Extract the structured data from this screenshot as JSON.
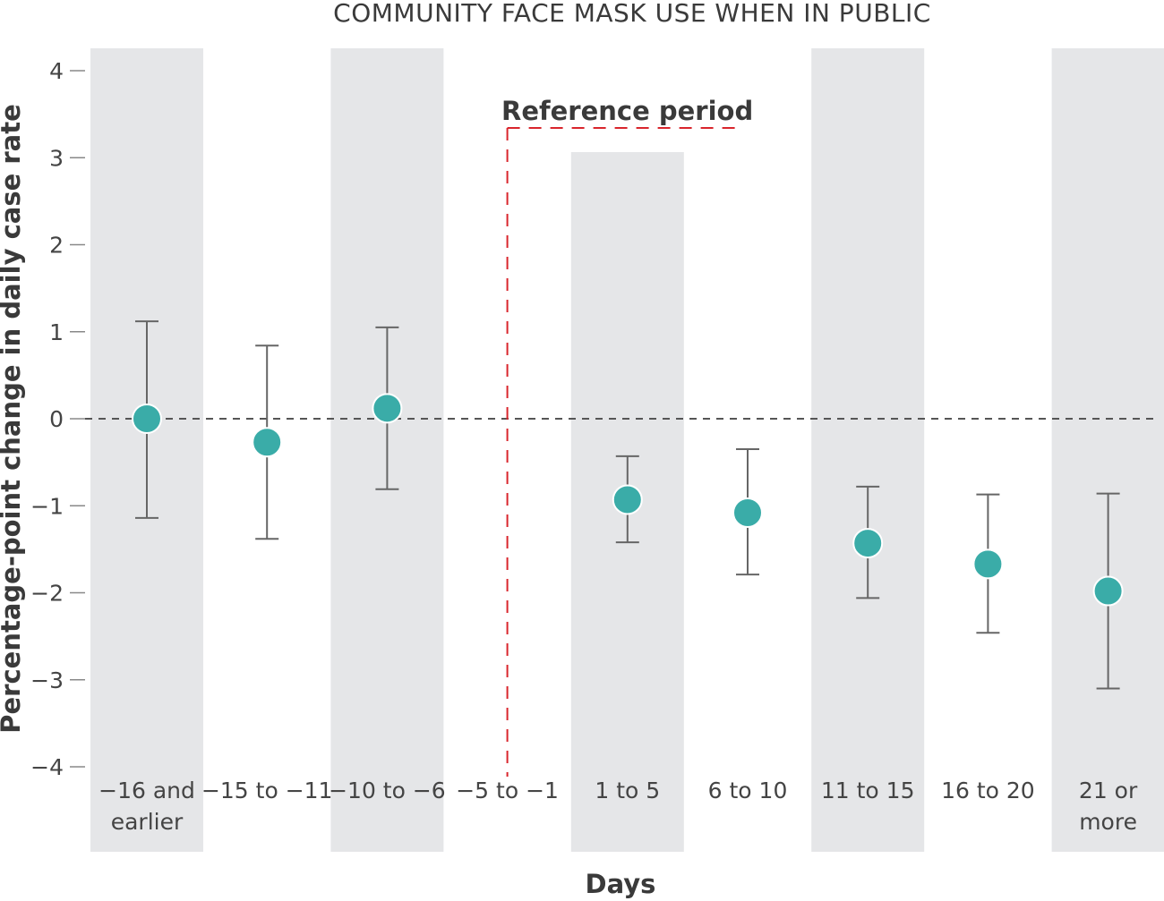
{
  "chart_data": {
    "type": "scatter",
    "title": "COMMUNITY FACE MASK USE WHEN IN PUBLIC",
    "xlabel": "Days",
    "ylabel": "Percentage-point change in daily case rate",
    "ylim": [
      -4,
      4
    ],
    "yticks": [
      "4",
      "3",
      "2",
      "1",
      "0",
      "−1",
      "−2",
      "−3",
      "−4"
    ],
    "categories": [
      [
        "−16 and",
        "earlier"
      ],
      [
        "−15 to −11"
      ],
      [
        "−10 to −6"
      ],
      [
        "−5 to −1"
      ],
      [
        "1 to 5"
      ],
      [
        "6 to 10"
      ],
      [
        "11 to 15"
      ],
      [
        "16 to 20"
      ],
      [
        "21 or",
        "more"
      ]
    ],
    "series": [
      {
        "values": [
          0.0,
          -0.27,
          0.12,
          null,
          -0.93,
          -1.08,
          -1.43,
          -1.67,
          -1.98
        ],
        "lower": [
          -1.14,
          -1.38,
          -0.81,
          null,
          -1.42,
          -1.79,
          -2.06,
          -2.46,
          -3.1
        ],
        "upper": [
          1.12,
          0.84,
          1.05,
          null,
          -0.43,
          -0.35,
          -0.78,
          -0.87,
          -0.86
        ]
      }
    ],
    "reference_period": {
      "label": "Reference period",
      "category_index": 3
    },
    "zero_line": 0,
    "colors": {
      "point": "#3aaca8",
      "errorbar": "#666666",
      "band": "#e5e6e8",
      "reference": "#d9252c",
      "zero_line": "#555555"
    }
  }
}
